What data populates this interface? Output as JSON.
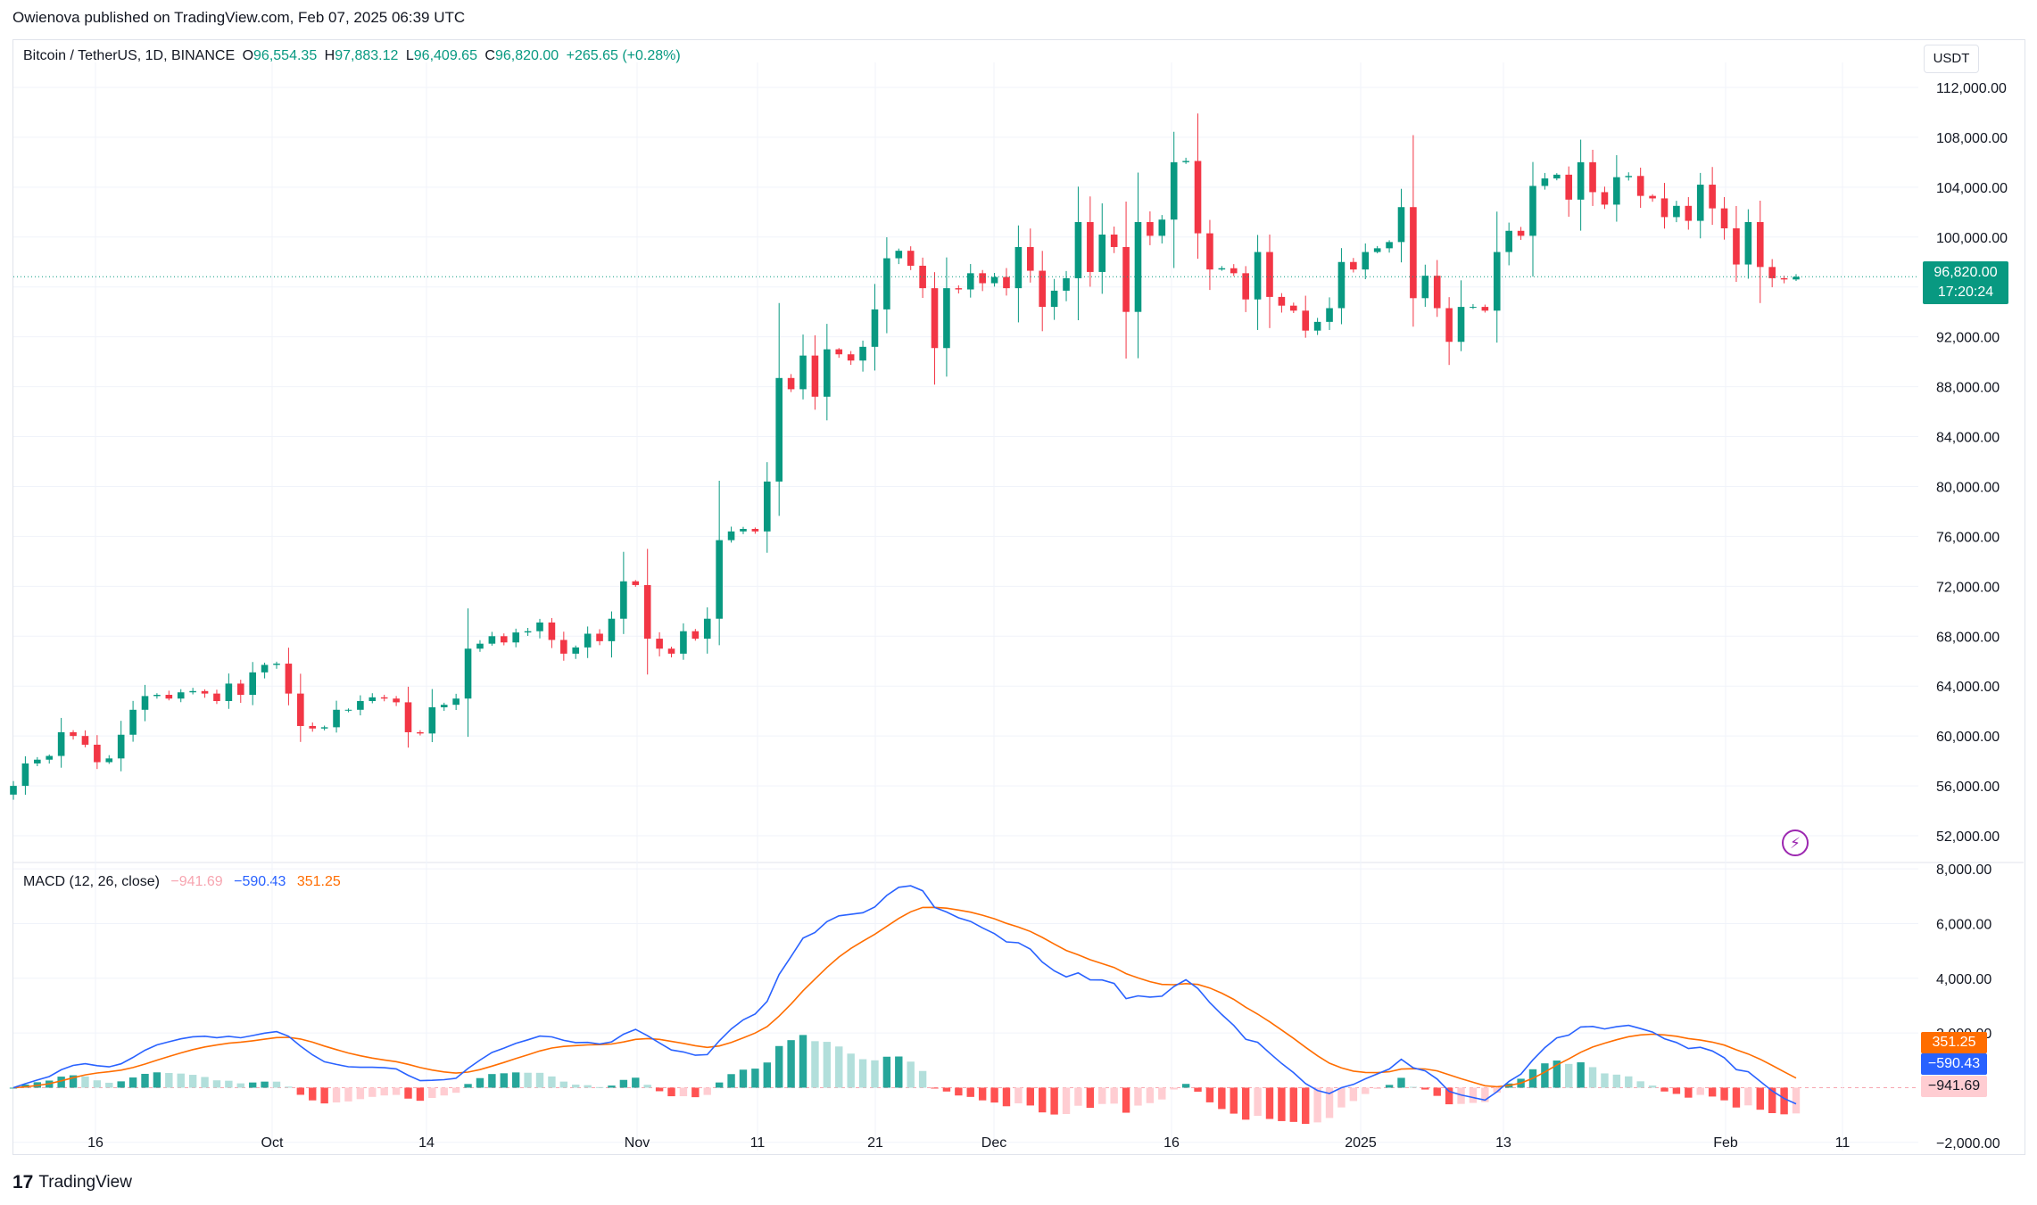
{
  "header": {
    "publisher": "Owienova published on TradingView.com, Feb 07, 2025 06:39 UTC"
  },
  "symbol": {
    "name": "Bitcoin / TetherUS, 1D, BINANCE",
    "open_label": "O",
    "open": "96,554.35",
    "high_label": "H",
    "high": "97,883.12",
    "low_label": "L",
    "low": "96,409.65",
    "close_label": "C",
    "close": "96,820.00",
    "change": "+265.65 (+0.28%)"
  },
  "price_scale": {
    "currency": "USDT",
    "last_price": "96,820.00",
    "countdown": "17:20:24"
  },
  "macd": {
    "label": "MACD (12, 26, close)",
    "histogram": "−941.69",
    "macd": "−590.43",
    "signal": "351.25"
  },
  "footer": {
    "brand": "TradingView"
  },
  "colors": {
    "up": "#089981",
    "down": "#f23645",
    "hist_up_strong": "#26a69a",
    "hist_up_weak": "#b2dfdb",
    "hist_down_strong": "#ff5252",
    "hist_down_weak": "#ffcdd2",
    "macd_line": "#2962ff",
    "signal_line": "#ff6d00",
    "grid": "#f0f3fa"
  },
  "icons": {
    "logo": "tradingview-logo-icon",
    "alert": "lightning-bolt-icon"
  },
  "chart_data": [
    {
      "type": "candlestick",
      "title": "Bitcoin / TetherUS, 1D, BINANCE",
      "x_ticks": [
        "16",
        "Oct",
        "14",
        "Nov",
        "11",
        "21",
        "Dec",
        "16",
        "2025",
        "13",
        "Feb",
        "11"
      ],
      "y_ticks": [
        52000,
        56000,
        60000,
        64000,
        68000,
        72000,
        76000,
        80000,
        84000,
        88000,
        92000,
        96000,
        100000,
        104000,
        108000,
        112000
      ],
      "y_tick_labels": [
        "52,000.00",
        "56,000.00",
        "60,000.00",
        "64,000.00",
        "68,000.00",
        "72,000.00",
        "76,000.00",
        "80,000.00",
        "84,000.00",
        "88,000.00",
        "92,000.00",
        "96,000.00",
        "100,000.00",
        "104,000.00",
        "108,000.00",
        "112,000.00"
      ],
      "ylim": [
        50000,
        114000
      ],
      "grid": true,
      "last_price": 96820,
      "closes": [
        56000,
        57800,
        58100,
        58400,
        60300,
        60000,
        59300,
        57900,
        58200,
        60100,
        62100,
        63200,
        63300,
        63000,
        63500,
        63600,
        63400,
        62800,
        64200,
        63300,
        65100,
        65700,
        65800,
        63400,
        60800,
        60600,
        60700,
        62100,
        62100,
        62800,
        63100,
        63000,
        62700,
        60300,
        60200,
        62300,
        62500,
        63000,
        67000,
        67400,
        68000,
        67500,
        68300,
        68400,
        69100,
        67700,
        66600,
        67100,
        68200,
        67600,
        69400,
        72400,
        72100,
        67800,
        67000,
        66600,
        68400,
        67800,
        69400,
        75700,
        76400,
        76600,
        76400,
        80400,
        88700,
        87800,
        90500,
        87200,
        91000,
        90600,
        90100,
        91200,
        94200,
        98300,
        98900,
        97700,
        95900,
        91100,
        95900,
        95800,
        97100,
        96300,
        96800,
        95900,
        99200,
        97300,
        94400,
        95700,
        96700,
        101200,
        97200,
        100200,
        99200,
        94000,
        101200,
        100100,
        101400,
        106000,
        106100,
        100300,
        97400,
        97500,
        97100,
        95000,
        98800,
        95200,
        94500,
        94100,
        92500,
        93200,
        94300,
        98000,
        97400,
        98800,
        99100,
        99600,
        102400,
        95100,
        96900,
        94300,
        91600,
        94400,
        94400,
        94100,
        98800,
        100500,
        100100,
        104100,
        104700,
        105000,
        103000,
        106000,
        103600,
        102600,
        104800,
        104900,
        103300,
        103100,
        101600,
        102500,
        101300,
        104200,
        102300,
        100700,
        97800,
        101200,
        97600,
        96700,
        96600,
        96820
      ]
    },
    {
      "type": "macd",
      "title": "MACD (12, 26, close)",
      "y_ticks": [
        -2000,
        2000,
        4000,
        6000,
        8000
      ],
      "y_tick_labels": [
        "−2,000.00",
        "2,000.00",
        "4,000.00",
        "6,000.00",
        "8,000.00"
      ],
      "ylim": [
        -2300,
        8200
      ],
      "series": [
        {
          "name": "MACD",
          "last": -590.43
        },
        {
          "name": "Signal",
          "last": 351.25
        },
        {
          "name": "Histogram",
          "last": -941.69
        }
      ]
    }
  ]
}
